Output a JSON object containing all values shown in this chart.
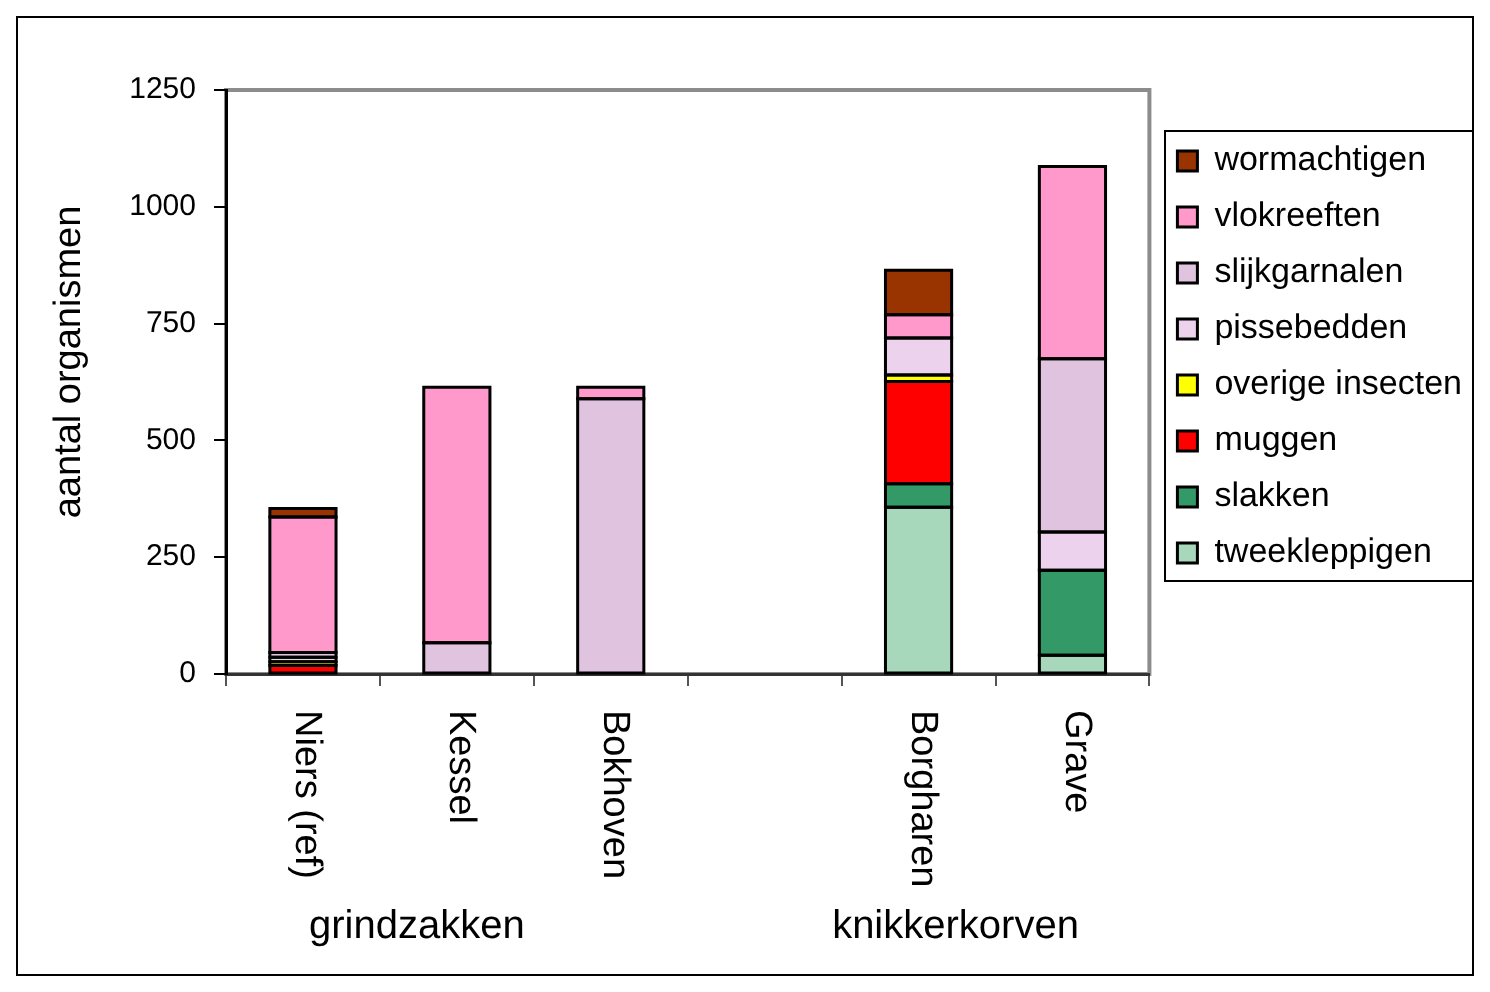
{
  "chart_data": {
    "type": "bar",
    "ylabel": "aantal organismen",
    "categories": [
      "Niers (ref)",
      "Kessel",
      "Bokhoven",
      null,
      "Borgharen",
      "Grave"
    ],
    "series": [
      {
        "name": "tweekleppigen",
        "color": "#a8d8bc",
        "values": [
          0,
          0,
          0,
          null,
          357,
          40
        ]
      },
      {
        "name": "slakken",
        "color": "#339966",
        "values": [
          0,
          0,
          0,
          null,
          50,
          182
        ]
      },
      {
        "name": "muggen",
        "color": "#ff0000",
        "values": [
          18,
          0,
          0,
          null,
          219,
          0
        ]
      },
      {
        "name": "overige insecten",
        "color": "#ffff00",
        "values": [
          8,
          0,
          0,
          null,
          14,
          0
        ]
      },
      {
        "name": "pissebedden",
        "color": "#ecd2ec",
        "values": [
          10,
          0,
          0,
          null,
          79,
          82
        ]
      },
      {
        "name": "slijkgarnalen",
        "color": "#dfc3df",
        "values": [
          10,
          67,
          589,
          null,
          0,
          371
        ]
      },
      {
        "name": "vlokreeften",
        "color": "#ff99cc",
        "values": [
          290,
          547,
          25,
          null,
          50,
          411
        ]
      },
      {
        "name": "wormachtigen",
        "color": "#993300",
        "values": [
          18,
          0,
          0,
          null,
          95,
          0
        ]
      }
    ],
    "stacked": true,
    "ylim": [
      0,
      1250
    ],
    "yticks": [
      0,
      250,
      500,
      750,
      1000,
      1250
    ],
    "legend": "right",
    "annotations": [
      "grindzakken",
      "knikkerkorven"
    ]
  }
}
